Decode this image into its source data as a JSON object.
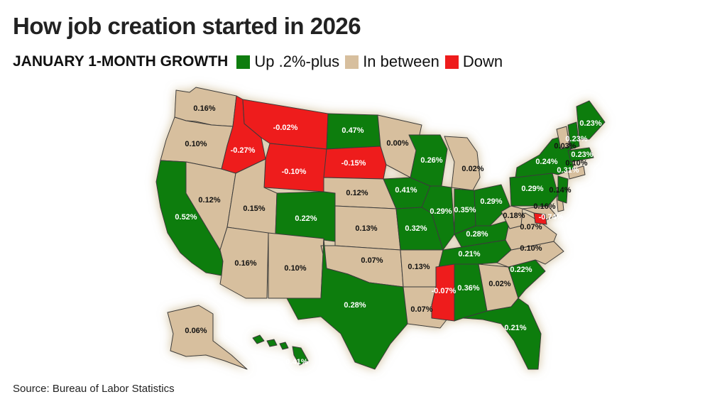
{
  "title": "How job creation started in 2026",
  "legend": {
    "title": "JANUARY 1-MONTH GROWTH",
    "items": [
      {
        "label": "Up .2%-plus",
        "color": "#0f7d0f"
      },
      {
        "label": "In between",
        "color": "#d7bf9e"
      },
      {
        "label": "Down",
        "color": "#ee1c1c"
      }
    ]
  },
  "source": "Source: Bureau of Labor Statistics",
  "colors": {
    "up": "#0f7d0f",
    "between": "#d7bf9e",
    "down": "#ee1c1c",
    "border": "#3a3a3a"
  },
  "chart_data": {
    "type": "choropleth",
    "states": [
      {
        "code": "WA",
        "value": "0.16%",
        "category": "between"
      },
      {
        "code": "OR",
        "value": "0.10%",
        "category": "between"
      },
      {
        "code": "CA",
        "value": "0.52%",
        "category": "up"
      },
      {
        "code": "NV",
        "value": "0.12%",
        "category": "between"
      },
      {
        "code": "ID",
        "value": "-0.27%",
        "category": "down"
      },
      {
        "code": "MT",
        "value": "-0.02%",
        "category": "down"
      },
      {
        "code": "WY",
        "value": "-0.10%",
        "category": "down"
      },
      {
        "code": "UT",
        "value": "0.15%",
        "category": "between"
      },
      {
        "code": "CO",
        "value": "0.22%",
        "category": "up"
      },
      {
        "code": "AZ",
        "value": "0.16%",
        "category": "between"
      },
      {
        "code": "NM",
        "value": "0.10%",
        "category": "between"
      },
      {
        "code": "ND",
        "value": "0.47%",
        "category": "up"
      },
      {
        "code": "SD",
        "value": "-0.15%",
        "category": "down"
      },
      {
        "code": "NE",
        "value": "0.12%",
        "category": "between"
      },
      {
        "code": "KS",
        "value": "0.13%",
        "category": "between"
      },
      {
        "code": "OK",
        "value": "0.07%",
        "category": "between"
      },
      {
        "code": "TX",
        "value": "0.28%",
        "category": "up"
      },
      {
        "code": "MN",
        "value": "0.00%",
        "category": "between"
      },
      {
        "code": "IA",
        "value": "0.41%",
        "category": "up"
      },
      {
        "code": "MO",
        "value": "0.32%",
        "category": "up"
      },
      {
        "code": "AR",
        "value": "0.13%",
        "category": "between"
      },
      {
        "code": "LA",
        "value": "0.07%",
        "category": "between"
      },
      {
        "code": "WI",
        "value": "0.26%",
        "category": "up"
      },
      {
        "code": "IL",
        "value": "0.29%",
        "category": "up"
      },
      {
        "code": "MI",
        "value": "0.02%",
        "category": "between"
      },
      {
        "code": "IN",
        "value": "0.35%",
        "category": "up"
      },
      {
        "code": "OH",
        "value": "0.29%",
        "category": "up"
      },
      {
        "code": "KY",
        "value": "0.28%",
        "category": "up"
      },
      {
        "code": "TN",
        "value": "0.21%",
        "category": "up"
      },
      {
        "code": "MS",
        "value": "-0.07%",
        "category": "down"
      },
      {
        "code": "AL",
        "value": "0.36%",
        "category": "up"
      },
      {
        "code": "GA",
        "value": "0.02%",
        "category": "between"
      },
      {
        "code": "FL",
        "value": "0.21%",
        "category": "up"
      },
      {
        "code": "SC",
        "value": "0.22%",
        "category": "up"
      },
      {
        "code": "NC",
        "value": "0.10%",
        "category": "between"
      },
      {
        "code": "VA",
        "value": "0.07%",
        "category": "between"
      },
      {
        "code": "WV",
        "value": "0.18%",
        "category": "between"
      },
      {
        "code": "MD",
        "value": "0.16%",
        "category": "between"
      },
      {
        "code": "DE",
        "value": "0.14%",
        "category": "between"
      },
      {
        "code": "DC",
        "value": "-0.74%",
        "category": "down"
      },
      {
        "code": "PA",
        "value": "0.29%",
        "category": "up"
      },
      {
        "code": "NJ",
        "value": "0.31%",
        "category": "up"
      },
      {
        "code": "NY",
        "value": "0.24%",
        "category": "up"
      },
      {
        "code": "CT",
        "value": "0.10%",
        "category": "between"
      },
      {
        "code": "VT",
        "value": "0.03%",
        "category": "between"
      },
      {
        "code": "NH",
        "value": "0.23%",
        "category": "up"
      },
      {
        "code": "MA",
        "value": "0.23%",
        "category": "up"
      },
      {
        "code": "ME",
        "value": "0.23%",
        "category": "up"
      },
      {
        "code": "AK",
        "value": "0.06%",
        "category": "between"
      },
      {
        "code": "HI",
        "value": "0.41%",
        "category": "up"
      }
    ]
  }
}
